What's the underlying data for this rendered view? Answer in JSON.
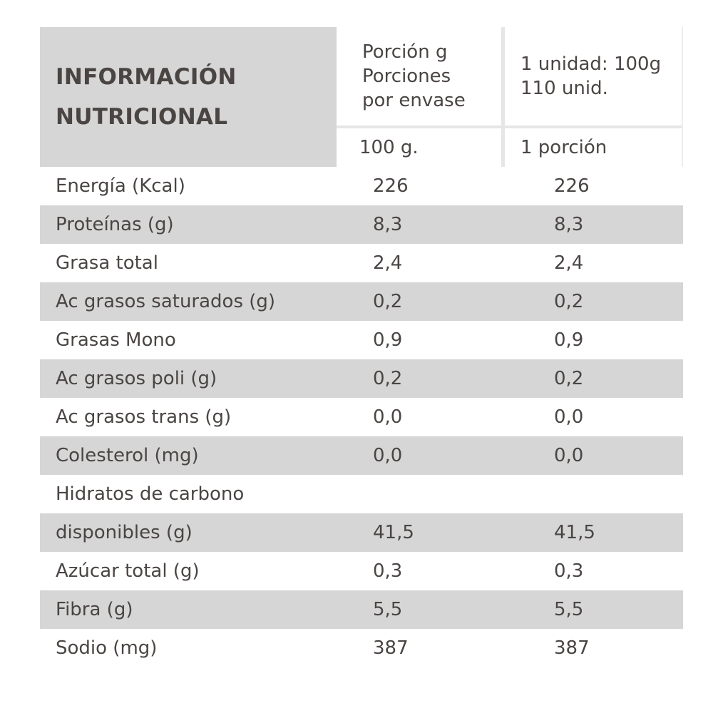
{
  "title": {
    "line1": "INFORMACIÓN",
    "line2": "NUTRICIONAL"
  },
  "header": {
    "porcion": {
      "line1": "Porción g",
      "line2": "Porciones",
      "line3": "por envase"
    },
    "unidad": {
      "line1": "1 unidad: 100g",
      "line2": "110 unid."
    },
    "col1": "100 g.",
    "col2": "1 porción"
  },
  "rows": [
    {
      "label": "Energía (Kcal)",
      "v1": "226",
      "v2": "226"
    },
    {
      "label": "Proteínas (g)",
      "v1": "8,3",
      "v2": "8,3"
    },
    {
      "label": "Grasa total",
      "v1": "2,4",
      "v2": "2,4"
    },
    {
      "label": "Ac grasos saturados (g)",
      "v1": "0,2",
      "v2": "0,2"
    },
    {
      "label": "Grasas Mono",
      "v1": "0,9",
      "v2": "0,9"
    },
    {
      "label": "Ac grasos poli (g)",
      "v1": "0,2",
      "v2": "0,2"
    },
    {
      "label": "Ac grasos trans (g)",
      "v1": "0,0",
      "v2": "0,0"
    },
    {
      "label": "Colesterol (mg)",
      "v1": "0,0",
      "v2": "0,0"
    },
    {
      "label": "Hidratos de carbono",
      "v1": "",
      "v2": ""
    },
    {
      "label": "disponibles (g)",
      "v1": "41,5",
      "v2": "41,5"
    },
    {
      "label": "Azúcar total (g)",
      "v1": "0,3",
      "v2": "0,3"
    },
    {
      "label": "Fibra (g)",
      "v1": "5,5",
      "v2": "5,5"
    },
    {
      "label": "Sodio (mg)",
      "v1": "387",
      "v2": "387"
    }
  ],
  "colors": {
    "shade": "#d6d6d6",
    "text": "#4a4543"
  }
}
